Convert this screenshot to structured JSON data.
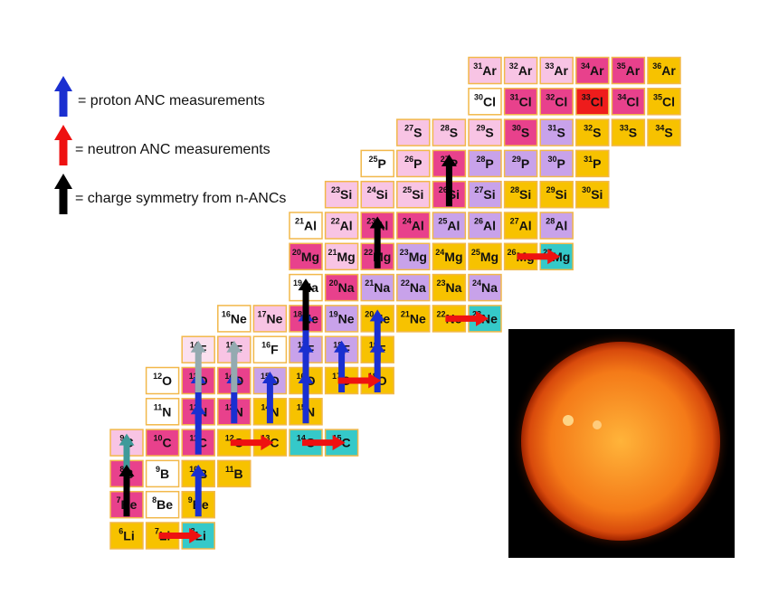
{
  "legend": [
    {
      "text": "= proton ANC measurements",
      "color": "#1a2fd0"
    },
    {
      "text": "= neutron ANC measurements",
      "color": "#ee1111"
    },
    {
      "text": "= charge symmetry from n-ANCs",
      "color": "#000000"
    }
  ],
  "rows": [
    [
      null,
      null,
      null,
      null,
      null,
      null,
      null,
      null,
      null,
      null,
      {
        "mass": "31",
        "symbol": "Ar",
        "color": "#f8c4e4"
      },
      {
        "mass": "32",
        "symbol": "Ar",
        "color": "#f8c4e4"
      },
      {
        "mass": "33",
        "symbol": "Ar",
        "color": "#f8c4e4"
      },
      {
        "mass": "34",
        "symbol": "Ar",
        "color": "#e8418c"
      },
      {
        "mass": "35",
        "symbol": "Ar",
        "color": "#e8418c"
      },
      {
        "mass": "36",
        "symbol": "Ar",
        "color": "#f7c200"
      }
    ],
    [
      null,
      null,
      null,
      null,
      null,
      null,
      null,
      null,
      null,
      null,
      {
        "mass": "30",
        "symbol": "Cl",
        "color": "#ffffff"
      },
      {
        "mass": "31",
        "symbol": "Cl",
        "color": "#e8418c"
      },
      {
        "mass": "32",
        "symbol": "Cl",
        "color": "#e8418c"
      },
      {
        "mass": "33",
        "symbol": "Cl",
        "color": "#ee1c1c"
      },
      {
        "mass": "34",
        "symbol": "Cl",
        "color": "#e8418c"
      },
      {
        "mass": "35",
        "symbol": "Cl",
        "color": "#f7c200"
      }
    ],
    [
      null,
      null,
      null,
      null,
      null,
      null,
      null,
      null,
      {
        "mass": "27",
        "symbol": "S",
        "color": "#f8c4e4"
      },
      {
        "mass": "28",
        "symbol": "S",
        "color": "#f8c4e4"
      },
      {
        "mass": "29",
        "symbol": "S",
        "color": "#f8c4e4"
      },
      {
        "mass": "30",
        "symbol": "S",
        "color": "#e8418c"
      },
      {
        "mass": "31",
        "symbol": "S",
        "color": "#c8a2ea"
      },
      {
        "mass": "32",
        "symbol": "S",
        "color": "#f7c200"
      },
      {
        "mass": "33",
        "symbol": "S",
        "color": "#f7c200"
      },
      {
        "mass": "34",
        "symbol": "S",
        "color": "#f7c200"
      }
    ],
    [
      null,
      null,
      null,
      null,
      null,
      null,
      null,
      {
        "mass": "25",
        "symbol": "P",
        "color": "#ffffff"
      },
      {
        "mass": "26",
        "symbol": "P",
        "color": "#f8c4e4"
      },
      {
        "mass": "27",
        "symbol": "P",
        "color": "#e8418c"
      },
      {
        "mass": "28",
        "symbol": "P",
        "color": "#c8a2ea"
      },
      {
        "mass": "29",
        "symbol": "P",
        "color": "#c8a2ea"
      },
      {
        "mass": "30",
        "symbol": "P",
        "color": "#c8a2ea"
      },
      {
        "mass": "31",
        "symbol": "P",
        "color": "#f7c200"
      }
    ],
    [
      null,
      null,
      null,
      null,
      null,
      null,
      {
        "mass": "23",
        "symbol": "Si",
        "color": "#f8c4e4"
      },
      {
        "mass": "24",
        "symbol": "Si",
        "color": "#f8c4e4"
      },
      {
        "mass": "25",
        "symbol": "Si",
        "color": "#f8c4e4"
      },
      {
        "mass": "26",
        "symbol": "Si",
        "color": "#e8418c"
      },
      {
        "mass": "27",
        "symbol": "Si",
        "color": "#c8a2ea"
      },
      {
        "mass": "28",
        "symbol": "Si",
        "color": "#f7c200"
      },
      {
        "mass": "29",
        "symbol": "Si",
        "color": "#f7c200"
      },
      {
        "mass": "30",
        "symbol": "Si",
        "color": "#f7c200"
      }
    ],
    [
      null,
      null,
      null,
      null,
      null,
      {
        "mass": "21",
        "symbol": "Al",
        "color": "#ffffff"
      },
      {
        "mass": "22",
        "symbol": "Al",
        "color": "#f8c4e4"
      },
      {
        "mass": "23",
        "symbol": "Al",
        "color": "#e8418c"
      },
      {
        "mass": "24",
        "symbol": "Al",
        "color": "#e8418c"
      },
      {
        "mass": "25",
        "symbol": "Al",
        "color": "#c8a2ea"
      },
      {
        "mass": "26",
        "symbol": "Al",
        "color": "#c8a2ea"
      },
      {
        "mass": "27",
        "symbol": "Al",
        "color": "#f7c200"
      },
      {
        "mass": "28",
        "symbol": "Al",
        "color": "#c8a2ea"
      }
    ],
    [
      null,
      null,
      null,
      null,
      null,
      {
        "mass": "20",
        "symbol": "Mg",
        "color": "#e8418c"
      },
      {
        "mass": "21",
        "symbol": "Mg",
        "color": "#f8c4e4"
      },
      {
        "mass": "22",
        "symbol": "Mg",
        "color": "#e8418c"
      },
      {
        "mass": "23",
        "symbol": "Mg",
        "color": "#c8a2ea"
      },
      {
        "mass": "24",
        "symbol": "Mg",
        "color": "#f7c200"
      },
      {
        "mass": "25",
        "symbol": "Mg",
        "color": "#f7c200"
      },
      {
        "mass": "26",
        "symbol": "Mg",
        "color": "#f7c200"
      },
      {
        "mass": "27",
        "symbol": "Mg",
        "color": "#35c9c9"
      }
    ],
    [
      null,
      null,
      null,
      null,
      null,
      {
        "mass": "19",
        "symbol": "Na",
        "color": "#ffffff"
      },
      {
        "mass": "20",
        "symbol": "Na",
        "color": "#e8418c"
      },
      {
        "mass": "21",
        "symbol": "Na",
        "color": "#c8a2ea"
      },
      {
        "mass": "22",
        "symbol": "Na",
        "color": "#c8a2ea"
      },
      {
        "mass": "23",
        "symbol": "Na",
        "color": "#f7c200"
      },
      {
        "mass": "24",
        "symbol": "Na",
        "color": "#c8a2ea"
      }
    ],
    [
      null,
      null,
      null,
      {
        "mass": "16",
        "symbol": "Ne",
        "color": "#ffffff"
      },
      {
        "mass": "17",
        "symbol": "Ne",
        "color": "#f8c4e4"
      },
      {
        "mass": "18",
        "symbol": "Ne",
        "color": "#e8418c"
      },
      {
        "mass": "19",
        "symbol": "Ne",
        "color": "#c8a2ea"
      },
      {
        "mass": "20",
        "symbol": "Ne",
        "color": "#f7c200"
      },
      {
        "mass": "21",
        "symbol": "Ne",
        "color": "#f7c200"
      },
      {
        "mass": "22",
        "symbol": "Ne",
        "color": "#f7c200"
      },
      {
        "mass": "23",
        "symbol": "Ne",
        "color": "#35c9c9"
      }
    ],
    [
      null,
      null,
      {
        "mass": "14",
        "symbol": "F",
        "color": "#fbe0ef"
      },
      {
        "mass": "15",
        "symbol": "F",
        "color": "#f8c4e4"
      },
      {
        "mass": "16",
        "symbol": "F",
        "color": "#ffffff"
      },
      {
        "mass": "17",
        "symbol": "F",
        "color": "#c8a2ea"
      },
      {
        "mass": "18",
        "symbol": "F",
        "color": "#c8a2ea"
      },
      {
        "mass": "19",
        "symbol": "F",
        "color": "#f7c200"
      }
    ],
    [
      null,
      {
        "mass": "12",
        "symbol": "O",
        "color": "#ffffff"
      },
      {
        "mass": "13",
        "symbol": "O",
        "color": "#e8418c"
      },
      {
        "mass": "14",
        "symbol": "O",
        "color": "#e8418c"
      },
      {
        "mass": "15",
        "symbol": "O",
        "color": "#c8a2ea"
      },
      {
        "mass": "16",
        "symbol": "O",
        "color": "#f7c200"
      },
      {
        "mass": "17",
        "symbol": "O",
        "color": "#f7c200"
      },
      {
        "mass": "18",
        "symbol": "O",
        "color": "#f7c200"
      }
    ],
    [
      null,
      {
        "mass": "11",
        "symbol": "N",
        "color": "#ffffff"
      },
      {
        "mass": "12",
        "symbol": "N",
        "color": "#e8418c"
      },
      {
        "mass": "13",
        "symbol": "N",
        "color": "#e8418c"
      },
      {
        "mass": "14",
        "symbol": "N",
        "color": "#f7c200"
      },
      {
        "mass": "15",
        "symbol": "N",
        "color": "#f7c200"
      }
    ],
    [
      {
        "mass": "9",
        "symbol": "C",
        "color": "#f8c4e4"
      },
      {
        "mass": "10",
        "symbol": "C",
        "color": "#e8418c"
      },
      {
        "mass": "11",
        "symbol": "C",
        "color": "#e8418c"
      },
      {
        "mass": "12",
        "symbol": "C",
        "color": "#f7c200"
      },
      {
        "mass": "13",
        "symbol": "C",
        "color": "#f7c200"
      },
      {
        "mass": "14",
        "symbol": "C",
        "color": "#35c9c9"
      },
      {
        "mass": "15",
        "symbol": "C",
        "color": "#35c9c9"
      }
    ],
    [
      {
        "mass": "8",
        "symbol": "B",
        "color": "#e8418c"
      },
      {
        "mass": "9",
        "symbol": "B",
        "color": "#ffffff"
      },
      {
        "mass": "10",
        "symbol": "B",
        "color": "#f7c200"
      },
      {
        "mass": "11",
        "symbol": "B",
        "color": "#f7c200"
      }
    ],
    [
      {
        "mass": "7",
        "symbol": "Be",
        "color": "#e8418c"
      },
      {
        "mass": "8",
        "symbol": "Be",
        "color": "#ffffff"
      },
      {
        "mass": "9",
        "symbol": "Be",
        "color": "#f7c200"
      }
    ],
    [
      {
        "mass": "6",
        "symbol": "Li",
        "color": "#f7c200"
      },
      {
        "mass": "7",
        "symbol": "Li",
        "color": "#f7c200"
      },
      {
        "mass": "8",
        "symbol": "Li",
        "color": "#35c9c9"
      }
    ]
  ]
}
